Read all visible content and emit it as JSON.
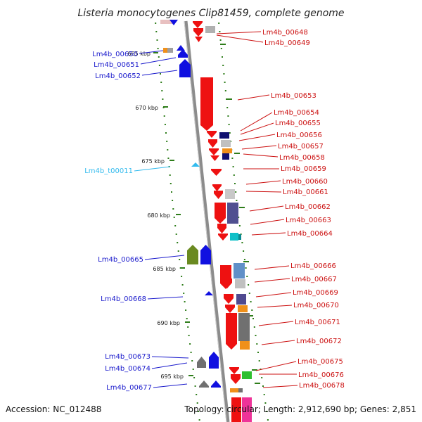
{
  "title": "Listeria monocytogenes Clip81459, complete genome",
  "footer": {
    "accession": "Accession: NC_012488",
    "summary": "Topology: circular; Length: 2,912,690 bp; Genes: 2,851"
  },
  "colors": {
    "forward_label": "#1a1acc",
    "reverse_label": "#cc1111",
    "trna_label": "#33bbee",
    "backbone": "#8c8c8c",
    "tick": "#2e7d1a",
    "forward_gene": "#1010e0",
    "reverse_gene": "#ee1111"
  },
  "kbp_ticks": [
    "665 kbp",
    "670 kbp",
    "675 kbp",
    "680 kbp",
    "685 kbp",
    "690 kbp",
    "695 kbp"
  ],
  "forward_labels": [
    "Lm4b_00650",
    "Lm4b_00651",
    "Lm4b_00652",
    "Lm4b_t00011",
    "Lm4b_00665",
    "Lm4b_00668",
    "Lm4b_00673",
    "Lm4b_00674",
    "Lm4b_00677"
  ],
  "reverse_labels": [
    "Lm4b_00648",
    "Lm4b_00649",
    "Lm4b_00653",
    "Lm4b_00654",
    "Lm4b_00655",
    "Lm4b_00656",
    "Lm4b_00657",
    "Lm4b_00658",
    "Lm4b_00659",
    "Lm4b_00660",
    "Lm4b_00661",
    "Lm4b_00662",
    "Lm4b_00663",
    "Lm4b_00664",
    "Lm4b_00666",
    "Lm4b_00667",
    "Lm4b_00669",
    "Lm4b_00670",
    "Lm4b_00671",
    "Lm4b_00672",
    "Lm4b_00675",
    "Lm4b_00676",
    "Lm4b_00678"
  ]
}
